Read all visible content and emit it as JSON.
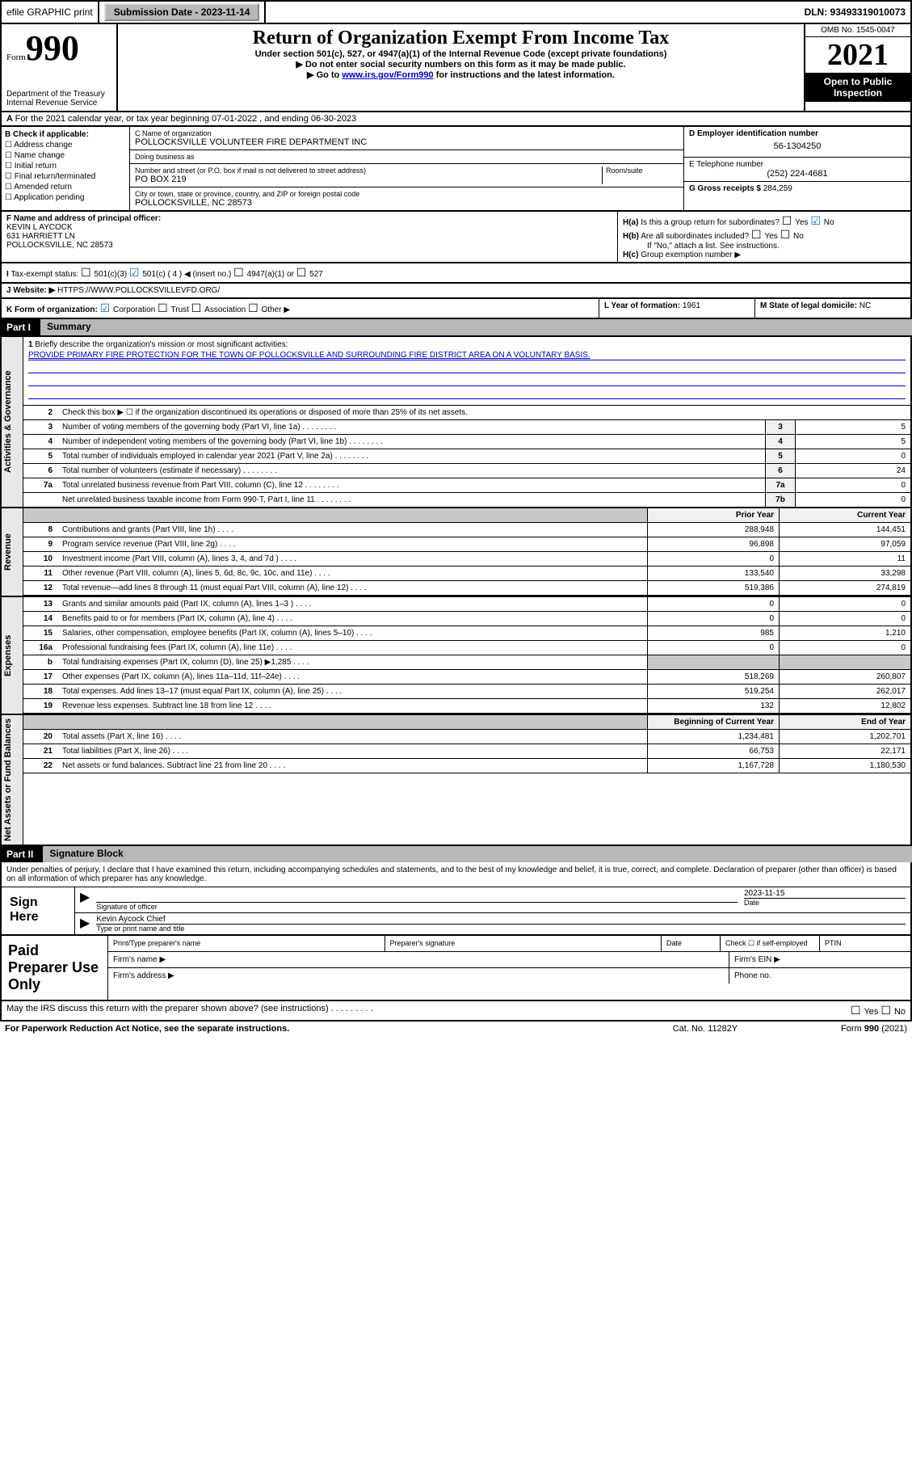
{
  "header": {
    "efile": "efile GRAPHIC print",
    "submission_label": "Submission Date - 2023-11-14",
    "dln": "DLN: 93493319010073"
  },
  "title_block": {
    "form_text": "Form",
    "form_num": "990",
    "dept": "Department of the Treasury",
    "irs": "Internal Revenue Service",
    "main_title": "Return of Organization Exempt From Income Tax",
    "subtitle": "Under section 501(c), 527, or 4947(a)(1) of the Internal Revenue Code (except private foundations)",
    "instr1": "Do not enter social security numbers on this form as it may be made public.",
    "instr2_pre": "Go to ",
    "instr2_link": "www.irs.gov/Form990",
    "instr2_post": " for instructions and the latest information.",
    "omb": "OMB No. 1545-0047",
    "year": "2021",
    "inspection": "Open to Public Inspection"
  },
  "row_a": "For the 2021 calendar year, or tax year beginning 07-01-2022   , and ending 06-30-2023",
  "section_b": {
    "header": "B Check if applicable:",
    "items": [
      "Address change",
      "Name change",
      "Initial return",
      "Final return/terminated",
      "Amended return",
      "Application pending"
    ]
  },
  "section_c": {
    "name_label": "C Name of organization",
    "name": "POLLOCKSVILLE VOLUNTEER FIRE DEPARTMENT INC",
    "dba_label": "Doing business as",
    "dba": "",
    "addr_label": "Number and street (or P.O. box if mail is not delivered to street address)",
    "room_label": "Room/suite",
    "addr": "PO BOX 219",
    "city_label": "City or town, state or province, country, and ZIP or foreign postal code",
    "city": "POLLOCKSVILLE, NC  28573"
  },
  "section_d": {
    "ein_label": "D Employer identification number",
    "ein": "56-1304250",
    "phone_label": "E Telephone number",
    "phone": "(252) 224-4681",
    "gross_label": "G Gross receipts $",
    "gross": "284,259"
  },
  "section_f": {
    "label": "F  Name and address of principal officer:",
    "name": "KEVIN L AYCOCK",
    "addr1": "631 HARRIETT LN",
    "addr2": "POLLOCKSVILLE, NC  28573"
  },
  "section_h": {
    "ha": "Is this a group return for subordinates?",
    "hb": "Are all subordinates included?",
    "hb_note": "If \"No,\" attach a list. See instructions.",
    "hc": "Group exemption number ▶",
    "yes": "Yes",
    "no": "No"
  },
  "tax_status": {
    "label": "Tax-exempt status:",
    "opt1": "501(c)(3)",
    "opt2": "501(c) ( 4 ) ◀ (insert no.)",
    "opt3": "4947(a)(1) or",
    "opt4": "527"
  },
  "website": {
    "label": "Website: ▶",
    "value": "HTTPS://WWW.POLLOCKSVILLEVFD.ORG/"
  },
  "section_k": {
    "label": "K Form of organization:",
    "corp": "Corporation",
    "trust": "Trust",
    "assoc": "Association",
    "other": "Other ▶"
  },
  "section_l": {
    "label": "L Year of formation:",
    "value": "1961"
  },
  "section_m": {
    "label": "M State of legal domicile:",
    "value": "NC"
  },
  "part1": {
    "label": "Part I",
    "title": "Summary"
  },
  "summary": {
    "side_labels": [
      "Activities & Governance",
      "Revenue",
      "Expenses",
      "Net Assets or Fund Balances"
    ],
    "line1_label": "Briefly describe the organization's mission or most significant activities:",
    "line1_text": "PROVIDE PRIMARY FIRE PROTECTION FOR THE TOWN OF POLLOCKSVILLE AND SURROUNDING FIRE DISTRICT AREA ON A VOLUNTARY BASIS.",
    "line2": "Check this box ▶ ☐  if the organization discontinued its operations or disposed of more than 25% of its net assets.",
    "rows_gov": [
      {
        "n": "3",
        "t": "Number of voting members of the governing body (Part VI, line 1a)",
        "b": "3",
        "v": "5"
      },
      {
        "n": "4",
        "t": "Number of independent voting members of the governing body (Part VI, line 1b)",
        "b": "4",
        "v": "5"
      },
      {
        "n": "5",
        "t": "Total number of individuals employed in calendar year 2021 (Part V, line 2a)",
        "b": "5",
        "v": "0"
      },
      {
        "n": "6",
        "t": "Total number of volunteers (estimate if necessary)",
        "b": "6",
        "v": "24"
      },
      {
        "n": "7a",
        "t": "Total unrelated business revenue from Part VIII, column (C), line 12",
        "b": "7a",
        "v": "0"
      },
      {
        "n": "",
        "t": "Net unrelated business taxable income from Form 990-T, Part I, line 11",
        "b": "7b",
        "v": "0"
      }
    ],
    "col_headers": {
      "prior": "Prior Year",
      "current": "Current Year",
      "beg": "Beginning of Current Year",
      "end": "End of Year"
    },
    "rows_rev": [
      {
        "n": "8",
        "t": "Contributions and grants (Part VIII, line 1h)",
        "p": "288,948",
        "c": "144,451"
      },
      {
        "n": "9",
        "t": "Program service revenue (Part VIII, line 2g)",
        "p": "96,898",
        "c": "97,059"
      },
      {
        "n": "10",
        "t": "Investment income (Part VIII, column (A), lines 3, 4, and 7d )",
        "p": "0",
        "c": "11"
      },
      {
        "n": "11",
        "t": "Other revenue (Part VIII, column (A), lines 5, 6d, 8c, 9c, 10c, and 11e)",
        "p": "133,540",
        "c": "33,298"
      },
      {
        "n": "12",
        "t": "Total revenue—add lines 8 through 11 (must equal Part VIII, column (A), line 12)",
        "p": "519,386",
        "c": "274,819"
      }
    ],
    "rows_exp": [
      {
        "n": "13",
        "t": "Grants and similar amounts paid (Part IX, column (A), lines 1–3 )",
        "p": "0",
        "c": "0"
      },
      {
        "n": "14",
        "t": "Benefits paid to or for members (Part IX, column (A), line 4)",
        "p": "0",
        "c": "0"
      },
      {
        "n": "15",
        "t": "Salaries, other compensation, employee benefits (Part IX, column (A), lines 5–10)",
        "p": "985",
        "c": "1,210"
      },
      {
        "n": "16a",
        "t": "Professional fundraising fees (Part IX, column (A), line 11e)",
        "p": "0",
        "c": "0"
      },
      {
        "n": "b",
        "t": "Total fundraising expenses (Part IX, column (D), line 25) ▶1,285",
        "p": "",
        "c": "",
        "grey": true
      },
      {
        "n": "17",
        "t": "Other expenses (Part IX, column (A), lines 11a–11d, 11f–24e)",
        "p": "518,269",
        "c": "260,807"
      },
      {
        "n": "18",
        "t": "Total expenses. Add lines 13–17 (must equal Part IX, column (A), line 25)",
        "p": "519,254",
        "c": "262,017"
      },
      {
        "n": "19",
        "t": "Revenue less expenses. Subtract line 18 from line 12",
        "p": "132",
        "c": "12,802"
      }
    ],
    "rows_net": [
      {
        "n": "20",
        "t": "Total assets (Part X, line 16)",
        "p": "1,234,481",
        "c": "1,202,701"
      },
      {
        "n": "21",
        "t": "Total liabilities (Part X, line 26)",
        "p": "66,753",
        "c": "22,171"
      },
      {
        "n": "22",
        "t": "Net assets or fund balances. Subtract line 21 from line 20",
        "p": "1,167,728",
        "c": "1,180,530"
      }
    ]
  },
  "part2": {
    "label": "Part II",
    "title": "Signature Block"
  },
  "declaration": "Under penalties of perjury, I declare that I have examined this return, including accompanying schedules and statements, and to the best of my knowledge and belief, it is true, correct, and complete. Declaration of preparer (other than officer) is based on all information of which preparer has any knowledge.",
  "sign": {
    "label": "Sign Here",
    "sig_label": "Signature of officer",
    "date_label": "Date",
    "date": "2023-11-15",
    "name": "Kevin Aycock  Chief",
    "name_label": "Type or print name and title"
  },
  "preparer": {
    "label": "Paid Preparer Use Only",
    "col1": "Print/Type preparer's name",
    "col2": "Preparer's signature",
    "col3": "Date",
    "col4": "Check ☐ if self-employed",
    "col5": "PTIN",
    "firm_name": "Firm's name   ▶",
    "firm_ein": "Firm's EIN ▶",
    "firm_addr": "Firm's address ▶",
    "phone": "Phone no."
  },
  "footer": {
    "discuss": "May the IRS discuss this return with the preparer shown above? (see instructions)",
    "yes": "Yes",
    "no": "No",
    "paperwork": "For Paperwork Reduction Act Notice, see the separate instructions.",
    "cat": "Cat. No. 11282Y",
    "form": "Form 990 (2021)"
  }
}
